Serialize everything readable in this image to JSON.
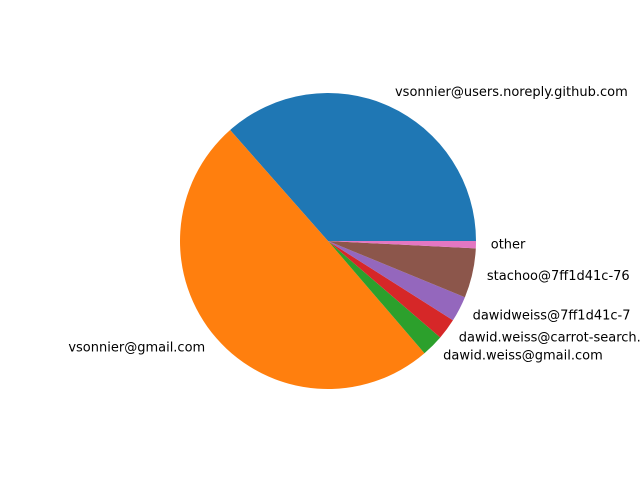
{
  "chart_data": {
    "type": "pie",
    "title": "",
    "start_angle_deg": 0,
    "counterclock": true,
    "slices": [
      {
        "label": "vsonnier@users.noreply.github.com",
        "value": 36.5,
        "color": "#1f77b4"
      },
      {
        "label": "vsonnier@gmail.com",
        "value": 49.8,
        "color": "#ff7f0e"
      },
      {
        "label": "dawid.weiss@gmail.com",
        "value": 2.4,
        "color": "#2ca02c"
      },
      {
        "label": "dawid.weiss@carrot-search.com",
        "value": 2.3,
        "color": "#d62728"
      },
      {
        "label": "dawidweiss@7ff1d41c-7",
        "value": 2.8,
        "color": "#9467bd"
      },
      {
        "label": "stachoo@7ff1d41c-76",
        "value": 5.4,
        "color": "#8c564b"
      },
      {
        "label": "other",
        "value": 0.8,
        "color": "#e377c2"
      }
    ]
  }
}
